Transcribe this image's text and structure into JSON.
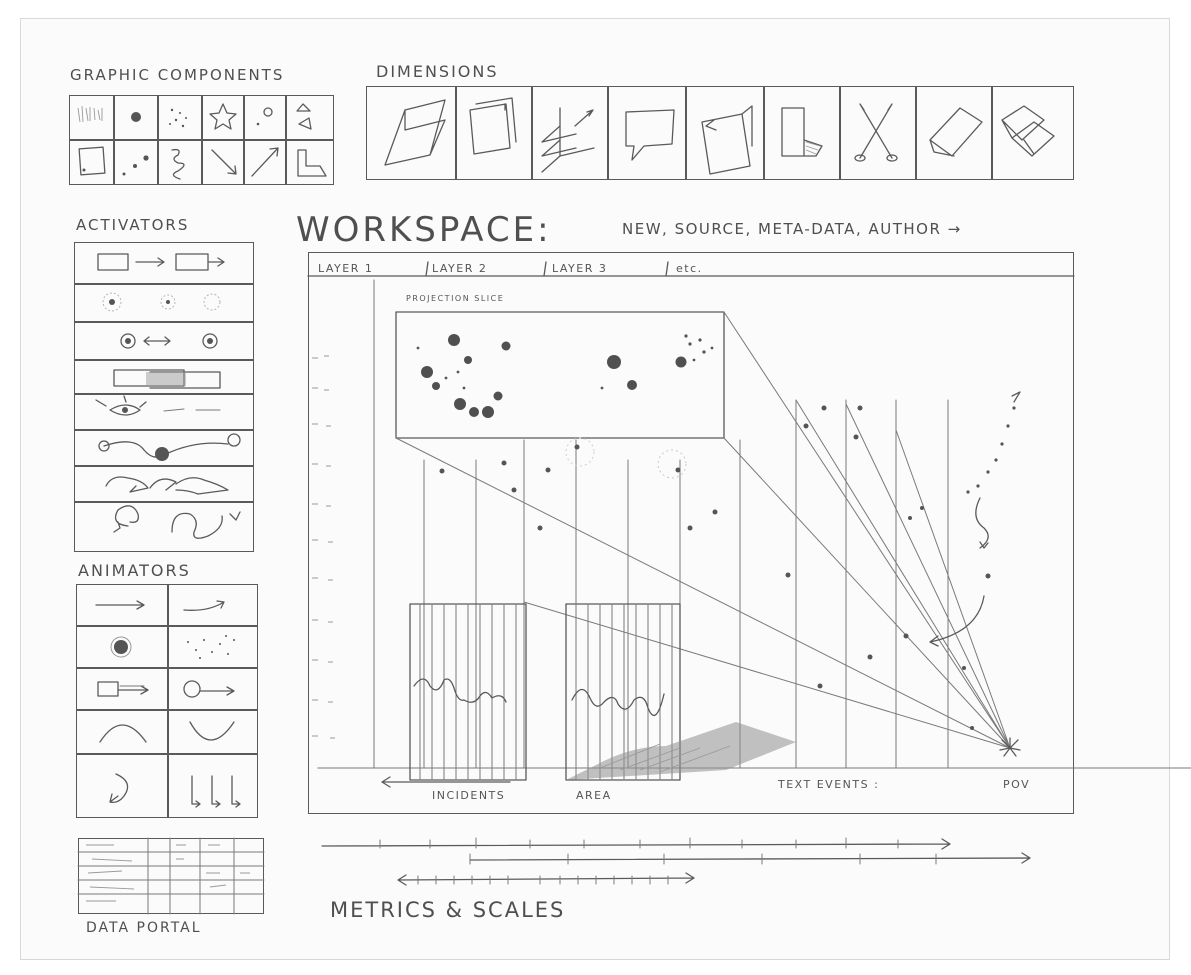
{
  "sections": {
    "graphic_components": "GRAPHIC COMPONENTS",
    "dimensions": "DIMENSIONS",
    "activators": "ACTIVATORS",
    "animators": "ANIMATORS",
    "data_portal": "DATA PORTAL",
    "metrics": "METRICS & SCALES"
  },
  "workspace": {
    "title": "WORKSPACE:",
    "subtitle": "NEW, SOURCE, META-DATA, AUTHOR →",
    "tabs": [
      "LAYER 1",
      "LAYER 2",
      "LAYER 3",
      "etc."
    ],
    "projection_label": "PROJECTION SLICE",
    "incidents_label": "INCIDENTS",
    "area_label": "AREA",
    "text_events_label": "TEXT EVENTS :",
    "pov_label": "POV"
  }
}
